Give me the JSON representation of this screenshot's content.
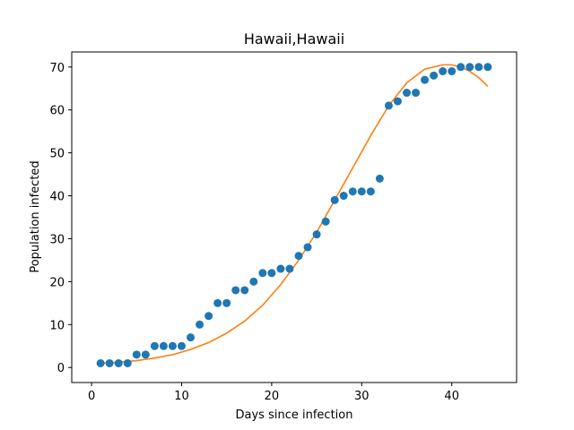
{
  "chart_data": {
    "type": "scatter",
    "title": "Hawaii,Hawaii",
    "xlabel": "Days since infection",
    "ylabel": "Population infected",
    "xlim": [
      -2.2,
      47.2
    ],
    "ylim": [
      -3.5,
      73.5
    ],
    "xticks": [
      0,
      10,
      20,
      30,
      40
    ],
    "yticks": [
      0,
      10,
      20,
      30,
      40,
      50,
      60,
      70
    ],
    "grid": false,
    "series": [
      {
        "kind": "scatter",
        "color": "#1f77b4",
        "x": [
          1,
          2,
          3,
          4,
          5,
          6,
          7,
          8,
          9,
          10,
          11,
          12,
          13,
          14,
          15,
          16,
          17,
          18,
          19,
          20,
          21,
          22,
          23,
          24,
          25,
          26,
          27,
          28,
          29,
          30,
          31,
          32,
          33,
          34,
          35,
          36,
          37,
          38,
          39,
          40,
          41,
          42,
          43,
          44
        ],
        "y": [
          1,
          1,
          1,
          1,
          3,
          3,
          5,
          5,
          5,
          5,
          7,
          10,
          12,
          15,
          15,
          18,
          18,
          20,
          22,
          22,
          23,
          23,
          26,
          28,
          31,
          34,
          39,
          40,
          41,
          41,
          41,
          44,
          61,
          62,
          64,
          64,
          67,
          68,
          69,
          69,
          70,
          70,
          70,
          70
        ]
      },
      {
        "kind": "line",
        "color": "#ff7f0e",
        "x": [
          1,
          3,
          5,
          7,
          9,
          11,
          13,
          15,
          17,
          19,
          21,
          23,
          25,
          27,
          29,
          31,
          33,
          35,
          37,
          39,
          40,
          41,
          42,
          43,
          44
        ],
        "y": [
          1,
          1.2,
          1.6,
          2.2,
          3.0,
          4.2,
          5.8,
          8.0,
          10.8,
          14.5,
          19.3,
          25.0,
          31.5,
          39.0,
          46.5,
          54.0,
          61.0,
          66.3,
          69.5,
          70.5,
          70.5,
          70.0,
          69.0,
          67.5,
          65.5
        ]
      }
    ]
  }
}
